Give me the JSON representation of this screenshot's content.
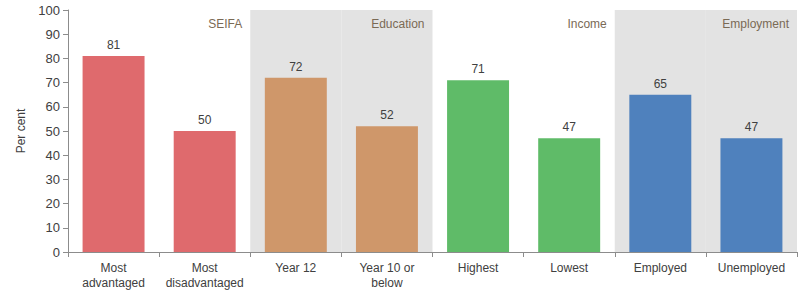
{
  "chart_data": {
    "type": "bar",
    "y_label": "Per cent",
    "categories": [
      "Most\nadvantaged",
      "Most\ndisadvantaged",
      "Year 12",
      "Year 10 or\nbelow",
      "Highest",
      "Lowest",
      "Employed",
      "Unemployed"
    ],
    "values": [
      81,
      50,
      72,
      52,
      71,
      47,
      65,
      47
    ],
    "colors": [
      "#df6a6d",
      "#df6a6d",
      "#cf976a",
      "#cf976a",
      "#5fbb68",
      "#5fbb68",
      "#4f81bd",
      "#4f81bd"
    ],
    "groups": [
      {
        "name": "SEIFA",
        "members": [
          "Most\nadvantaged",
          "Most\ndisadvantaged"
        ]
      },
      {
        "name": "Education",
        "members": [
          "Year 12",
          "Year 10 or\nbelow"
        ]
      },
      {
        "name": "Income",
        "members": [
          "Highest",
          "Lowest"
        ]
      },
      {
        "name": "Employment",
        "members": [
          "Employed",
          "Unemployed"
        ]
      }
    ],
    "ylim": [
      0,
      100
    ],
    "yticks": [
      0,
      10,
      20,
      30,
      40,
      50,
      60,
      70,
      80,
      90,
      100
    ],
    "grid": false,
    "data_labels": true
  }
}
